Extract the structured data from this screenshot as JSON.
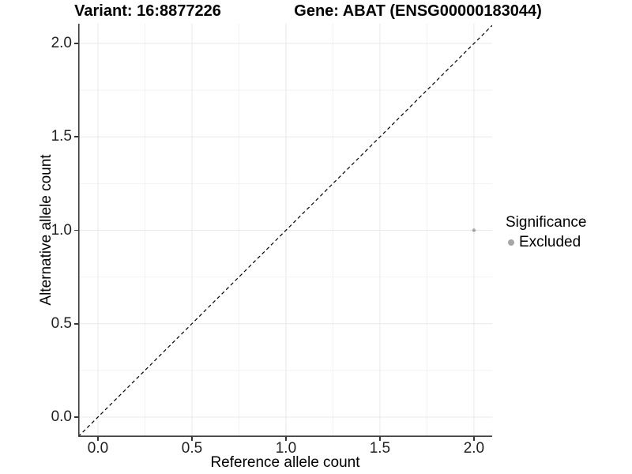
{
  "chart_data": {
    "type": "scatter",
    "title_left": "Variant: 16:8877226",
    "title_right": "Gene: ABAT (ENSG00000183044)",
    "xlabel": "Reference allele count",
    "ylabel": "Alternative allele count",
    "xlim": [
      -0.105,
      2.097
    ],
    "ylim": [
      -0.106,
      2.106
    ],
    "x_ticks": {
      "values": [
        0.0,
        0.5,
        1.0,
        1.5,
        2.0
      ],
      "labels": [
        "0.0",
        "0.5",
        "1.0",
        "1.5",
        "2.0"
      ]
    },
    "y_ticks": {
      "values": [
        0.0,
        0.5,
        1.0,
        1.5,
        2.0
      ],
      "labels": [
        "0.0",
        "0.5",
        "1.0",
        "1.5",
        "2.0"
      ]
    },
    "x_minor": [
      0.25,
      0.75,
      1.25,
      1.75
    ],
    "y_minor": [
      0.25,
      0.75,
      1.25,
      1.75
    ],
    "grid": true,
    "identity_line": {
      "equation": "y = x",
      "style": "dashed",
      "color": "#000000"
    },
    "series": [
      {
        "name": "Excluded",
        "color": "#a6a6a6",
        "points": [
          {
            "x": 2.0,
            "y": 1.0
          }
        ]
      }
    ],
    "legend": {
      "title": "Significance",
      "position": "right",
      "items": [
        {
          "label": "Excluded",
          "color": "#a6a6a6"
        }
      ]
    },
    "colors": {
      "grid_major": "#e8e8e8",
      "grid_minor": "#f2f2f2",
      "axis_line": "#3c3c3c",
      "tick_mark": "#333333",
      "tick_text": "#1f1f1f"
    }
  }
}
